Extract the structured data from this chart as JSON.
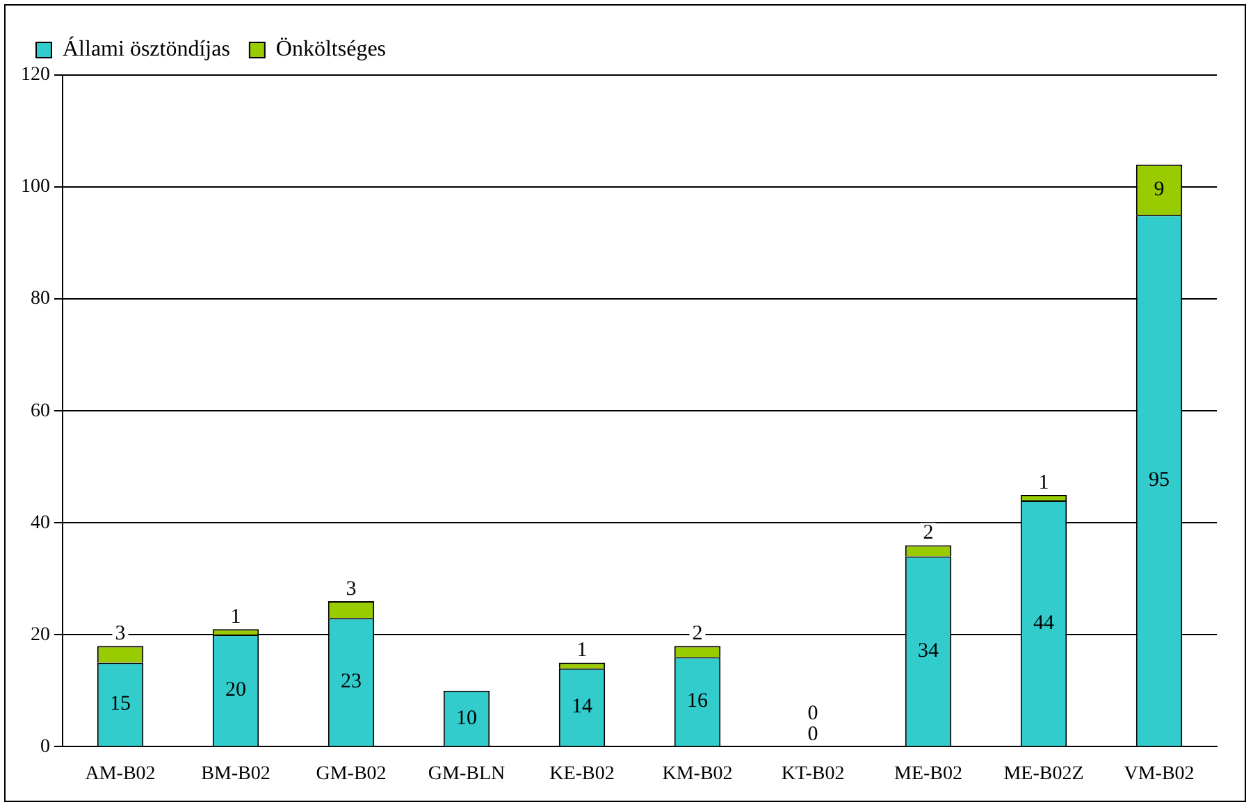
{
  "chart_data": {
    "type": "bar",
    "stacked": true,
    "categories": [
      "AM-B02",
      "BM-B02",
      "GM-B02",
      "GM-BLN",
      "KE-B02",
      "KM-B02",
      "KT-B02",
      "ME-B02",
      "ME-B02Z",
      "VM-B02"
    ],
    "series": [
      {
        "name": "Állami ösztöndíjas",
        "color": "#33cccc",
        "values": [
          15,
          20,
          23,
          10,
          14,
          16,
          0,
          34,
          44,
          95
        ],
        "value_labels": [
          "15",
          "20",
          "23",
          "10",
          "14",
          "16",
          "0",
          "34",
          "44",
          "95"
        ]
      },
      {
        "name": "Önköltséges",
        "color": "#99cc00",
        "values": [
          3,
          1,
          3,
          0,
          1,
          2,
          0,
          2,
          1,
          9
        ],
        "value_labels": [
          "3",
          "1",
          "3",
          null,
          "1",
          "2",
          "0",
          "2",
          "1",
          "9"
        ]
      }
    ],
    "ylim": [
      0,
      120
    ],
    "yticks": [
      0,
      20,
      40,
      60,
      80,
      100,
      120
    ],
    "grid": "y",
    "legend": "top"
  }
}
